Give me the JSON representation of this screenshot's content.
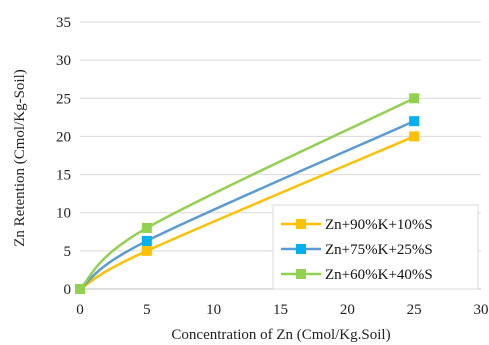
{
  "chart_data": {
    "type": "line",
    "title": "",
    "xlabel": "Concentration of Zn (Cmol/Kg.Soil)",
    "ylabel": "Zn Retention (Cmol/Kg-Soil)",
    "xlim": [
      0,
      30
    ],
    "ylim": [
      0,
      35
    ],
    "xticks": [
      0,
      5,
      10,
      15,
      20,
      25,
      30
    ],
    "yticks": [
      0,
      5,
      10,
      15,
      20,
      25,
      30,
      35
    ],
    "grid": "horizontal",
    "legend_position": "bottom-right",
    "series": [
      {
        "name": "Zn+90%K+10%S",
        "color": "#FFC000",
        "x": [
          0,
          5,
          25
        ],
        "y": [
          0,
          5,
          20
        ]
      },
      {
        "name": "Zn+75%K+25%S",
        "color": "#00B0F0",
        "line_color": "#5B9BD5",
        "x": [
          0,
          5,
          25
        ],
        "y": [
          0,
          6.3,
          22
        ]
      },
      {
        "name": "Zn+60%K+40%S",
        "color": "#92D050",
        "x": [
          0,
          5,
          25
        ],
        "y": [
          0,
          8,
          25
        ]
      }
    ]
  }
}
